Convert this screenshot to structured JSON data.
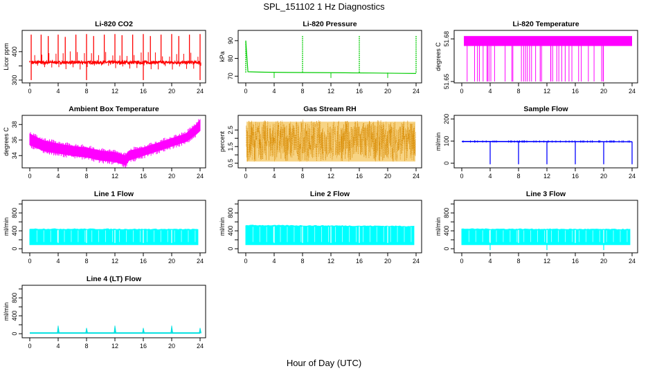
{
  "figure": {
    "title": "SPL_151102  1 Hz Diagnostics",
    "xlabel": "Hour of Day (UTC)"
  },
  "chart_data": [
    {
      "type": "line",
      "title": "Li-820 CO2",
      "ylabel": "Licor ppm",
      "color": "#ff0000",
      "xlim": [
        0,
        24
      ],
      "ylim": [
        295,
        470
      ],
      "xticks": [
        0,
        4,
        8,
        12,
        16,
        20,
        24
      ],
      "yticks": [
        300,
        350,
        400
      ],
      "yticklabels": [
        "300",
        "",
        "400"
      ],
      "style": "spiky",
      "series": [
        {
          "x": [
            0,
            0.2,
            0.3,
            1.6,
            2.6,
            4,
            5,
            6.5,
            8,
            9,
            10.5,
            12,
            13,
            14.5,
            16,
            17,
            18.5,
            20,
            21,
            22.5,
            24
          ],
          "y": [
            368,
            460,
            368,
            460,
            455,
            460,
            452,
            460,
            462,
            455,
            460,
            462,
            458,
            460,
            462,
            455,
            460,
            462,
            455,
            460,
            462
          ]
        }
      ],
      "baseline": 362,
      "dips": [
        0.2,
        8,
        16,
        24
      ]
    },
    {
      "type": "line",
      "title": "Li-820 Pressure",
      "ylabel": "kPa",
      "color": "#00cc00",
      "xlim": [
        0,
        24
      ],
      "ylim": [
        67,
        95
      ],
      "xticks": [
        0,
        4,
        8,
        12,
        16,
        20,
        24
      ],
      "yticks": [
        70,
        80,
        90
      ],
      "style": "flat",
      "series": [
        {
          "x": [
            0,
            0.3,
            2,
            6,
            10,
            14,
            18,
            22,
            24
          ],
          "y": [
            90,
            72.5,
            72.3,
            72.1,
            72.0,
            71.9,
            71.8,
            71.6,
            71.5
          ]
        }
      ],
      "spikes": [
        0,
        8,
        16,
        24
      ],
      "smallDips": [
        4,
        12,
        20
      ]
    },
    {
      "type": "line",
      "title": "Li-820 Temperature",
      "ylabel": "degrees C",
      "color": "#ff00ff",
      "xlim": [
        0,
        24
      ],
      "ylim": [
        51.65,
        51.685
      ],
      "xticks": [
        0,
        4,
        8,
        12,
        16,
        20,
        24
      ],
      "yticks": [
        51.65,
        51.68
      ],
      "yticklabels": [
        "51.65",
        "51.68"
      ],
      "style": "band",
      "series": [
        {
          "x": [
            0,
            24
          ],
          "y": [
            51.675,
            51.675
          ]
        }
      ],
      "bandTop": 51.682,
      "bandBottom": 51.675,
      "dropBottom": 51.65
    },
    {
      "type": "area",
      "title": "Ambient Box Temperature",
      "ylabel": "degrees C",
      "color": "#ff00ff",
      "xlim": [
        0,
        24
      ],
      "ylim": [
        32.6,
        39
      ],
      "xticks": [
        0,
        4,
        8,
        12,
        16,
        20,
        24
      ],
      "yticks": [
        34,
        36,
        38
      ],
      "style": "envelope",
      "series": [
        {
          "x": [
            0,
            2,
            4,
            6,
            8,
            10,
            12,
            13.5,
            14,
            16,
            18,
            20,
            22,
            23.5,
            24
          ],
          "upper": [
            36.8,
            35.9,
            35.5,
            35.2,
            35.0,
            34.6,
            34.4,
            34.0,
            34.6,
            35.0,
            35.6,
            36.2,
            36.8,
            38.0,
            38.6
          ],
          "lower": [
            35.4,
            34.6,
            34.3,
            34.0,
            33.8,
            33.4,
            33.2,
            32.8,
            33.4,
            34.0,
            34.6,
            35.2,
            35.8,
            36.8,
            37.2
          ]
        }
      ]
    },
    {
      "type": "area",
      "title": "Gas Stream RH",
      "ylabel": "percent",
      "color": "#e6a000",
      "xlim": [
        0,
        24
      ],
      "ylim": [
        0.3,
        3.3
      ],
      "xticks": [
        0,
        4,
        8,
        12,
        16,
        20,
        24
      ],
      "yticks": [
        0.5,
        1.0,
        1.5,
        2.0,
        2.5
      ],
      "yticklabels": [
        "0.5",
        "1.5",
        "2.5"
      ],
      "style": "noise",
      "series": [
        {
          "x": [
            0,
            24
          ],
          "upper": [
            3.1,
            3.1
          ],
          "lower": [
            0.5,
            0.5
          ]
        }
      ]
    },
    {
      "type": "line",
      "title": "Sample Flow",
      "ylabel": "ml/min",
      "color": "#0000ff",
      "xlim": [
        0,
        24
      ],
      "ylim": [
        -15,
        210
      ],
      "xticks": [
        0,
        4,
        8,
        12,
        16,
        20,
        24
      ],
      "yticks": [
        0,
        100,
        200
      ],
      "style": "flatdips",
      "series": [
        {
          "x": [
            0,
            24
          ],
          "y": [
            98,
            97
          ]
        }
      ],
      "dips": [
        4,
        8,
        12,
        16,
        20,
        24
      ]
    },
    {
      "type": "area",
      "title": "Line 1 Flow",
      "ylabel": "ml/min",
      "color": "#00ffff",
      "xlim": [
        0,
        24
      ],
      "ylim": [
        -60,
        1050
      ],
      "xticks": [
        0,
        4,
        8,
        12,
        16,
        20,
        24
      ],
      "yticks": [
        0,
        200,
        400,
        600,
        800,
        1000
      ],
      "yticklabels": [
        "0",
        "400",
        "800"
      ],
      "style": "block",
      "series": [
        {
          "x": [
            0,
            23.7
          ],
          "upper": [
            440,
            430
          ],
          "lower": [
            90,
            90
          ]
        }
      ],
      "gaps": [
        4,
        8,
        12,
        16,
        20
      ]
    },
    {
      "type": "area",
      "title": "Line 2 Flow",
      "ylabel": "ml/min",
      "color": "#00ffff",
      "xlim": [
        0,
        24
      ],
      "ylim": [
        -60,
        1050
      ],
      "xticks": [
        0,
        4,
        8,
        12,
        16,
        20,
        24
      ],
      "yticks": [
        0,
        200,
        400,
        600,
        800,
        1000
      ],
      "yticklabels": [
        "0",
        "400",
        "800"
      ],
      "style": "block",
      "series": [
        {
          "x": [
            0,
            23.7
          ],
          "upper": [
            520,
            500
          ],
          "lower": [
            90,
            90
          ]
        }
      ],
      "gaps": [
        4,
        8,
        12,
        16,
        20
      ]
    },
    {
      "type": "area",
      "title": "Line 3 Flow",
      "ylabel": "ml/min",
      "color": "#00ffff",
      "xlim": [
        0,
        24
      ],
      "ylim": [
        -60,
        1050
      ],
      "xticks": [
        0,
        4,
        8,
        12,
        16,
        20,
        24
      ],
      "yticks": [
        0,
        200,
        400,
        600,
        800,
        1000
      ],
      "yticklabels": [
        "0",
        "400",
        "800"
      ],
      "style": "block",
      "series": [
        {
          "x": [
            0,
            23.7
          ],
          "upper": [
            440,
            430
          ],
          "lower": [
            90,
            90
          ]
        }
      ],
      "gaps": [
        4,
        8,
        12,
        16,
        20
      ],
      "dips": [
        4,
        12,
        20
      ]
    },
    {
      "type": "line",
      "title": "Line 4 (LT) Flow",
      "ylabel": "ml/min",
      "color": "#00e0e0",
      "xlim": [
        0,
        24
      ],
      "ylim": [
        -60,
        1050
      ],
      "xticks": [
        0,
        4,
        8,
        12,
        16,
        20,
        24
      ],
      "yticks": [
        0,
        200,
        400,
        600,
        800,
        1000
      ],
      "yticklabels": [
        "0",
        "400",
        "800"
      ],
      "style": "flatspikes",
      "series": [
        {
          "x": [
            0,
            24
          ],
          "y": [
            15,
            15
          ]
        }
      ],
      "spikes": [
        4,
        8,
        12,
        16,
        20,
        24
      ],
      "spikeHeights": [
        180,
        130,
        180,
        130,
        180,
        130
      ]
    }
  ]
}
